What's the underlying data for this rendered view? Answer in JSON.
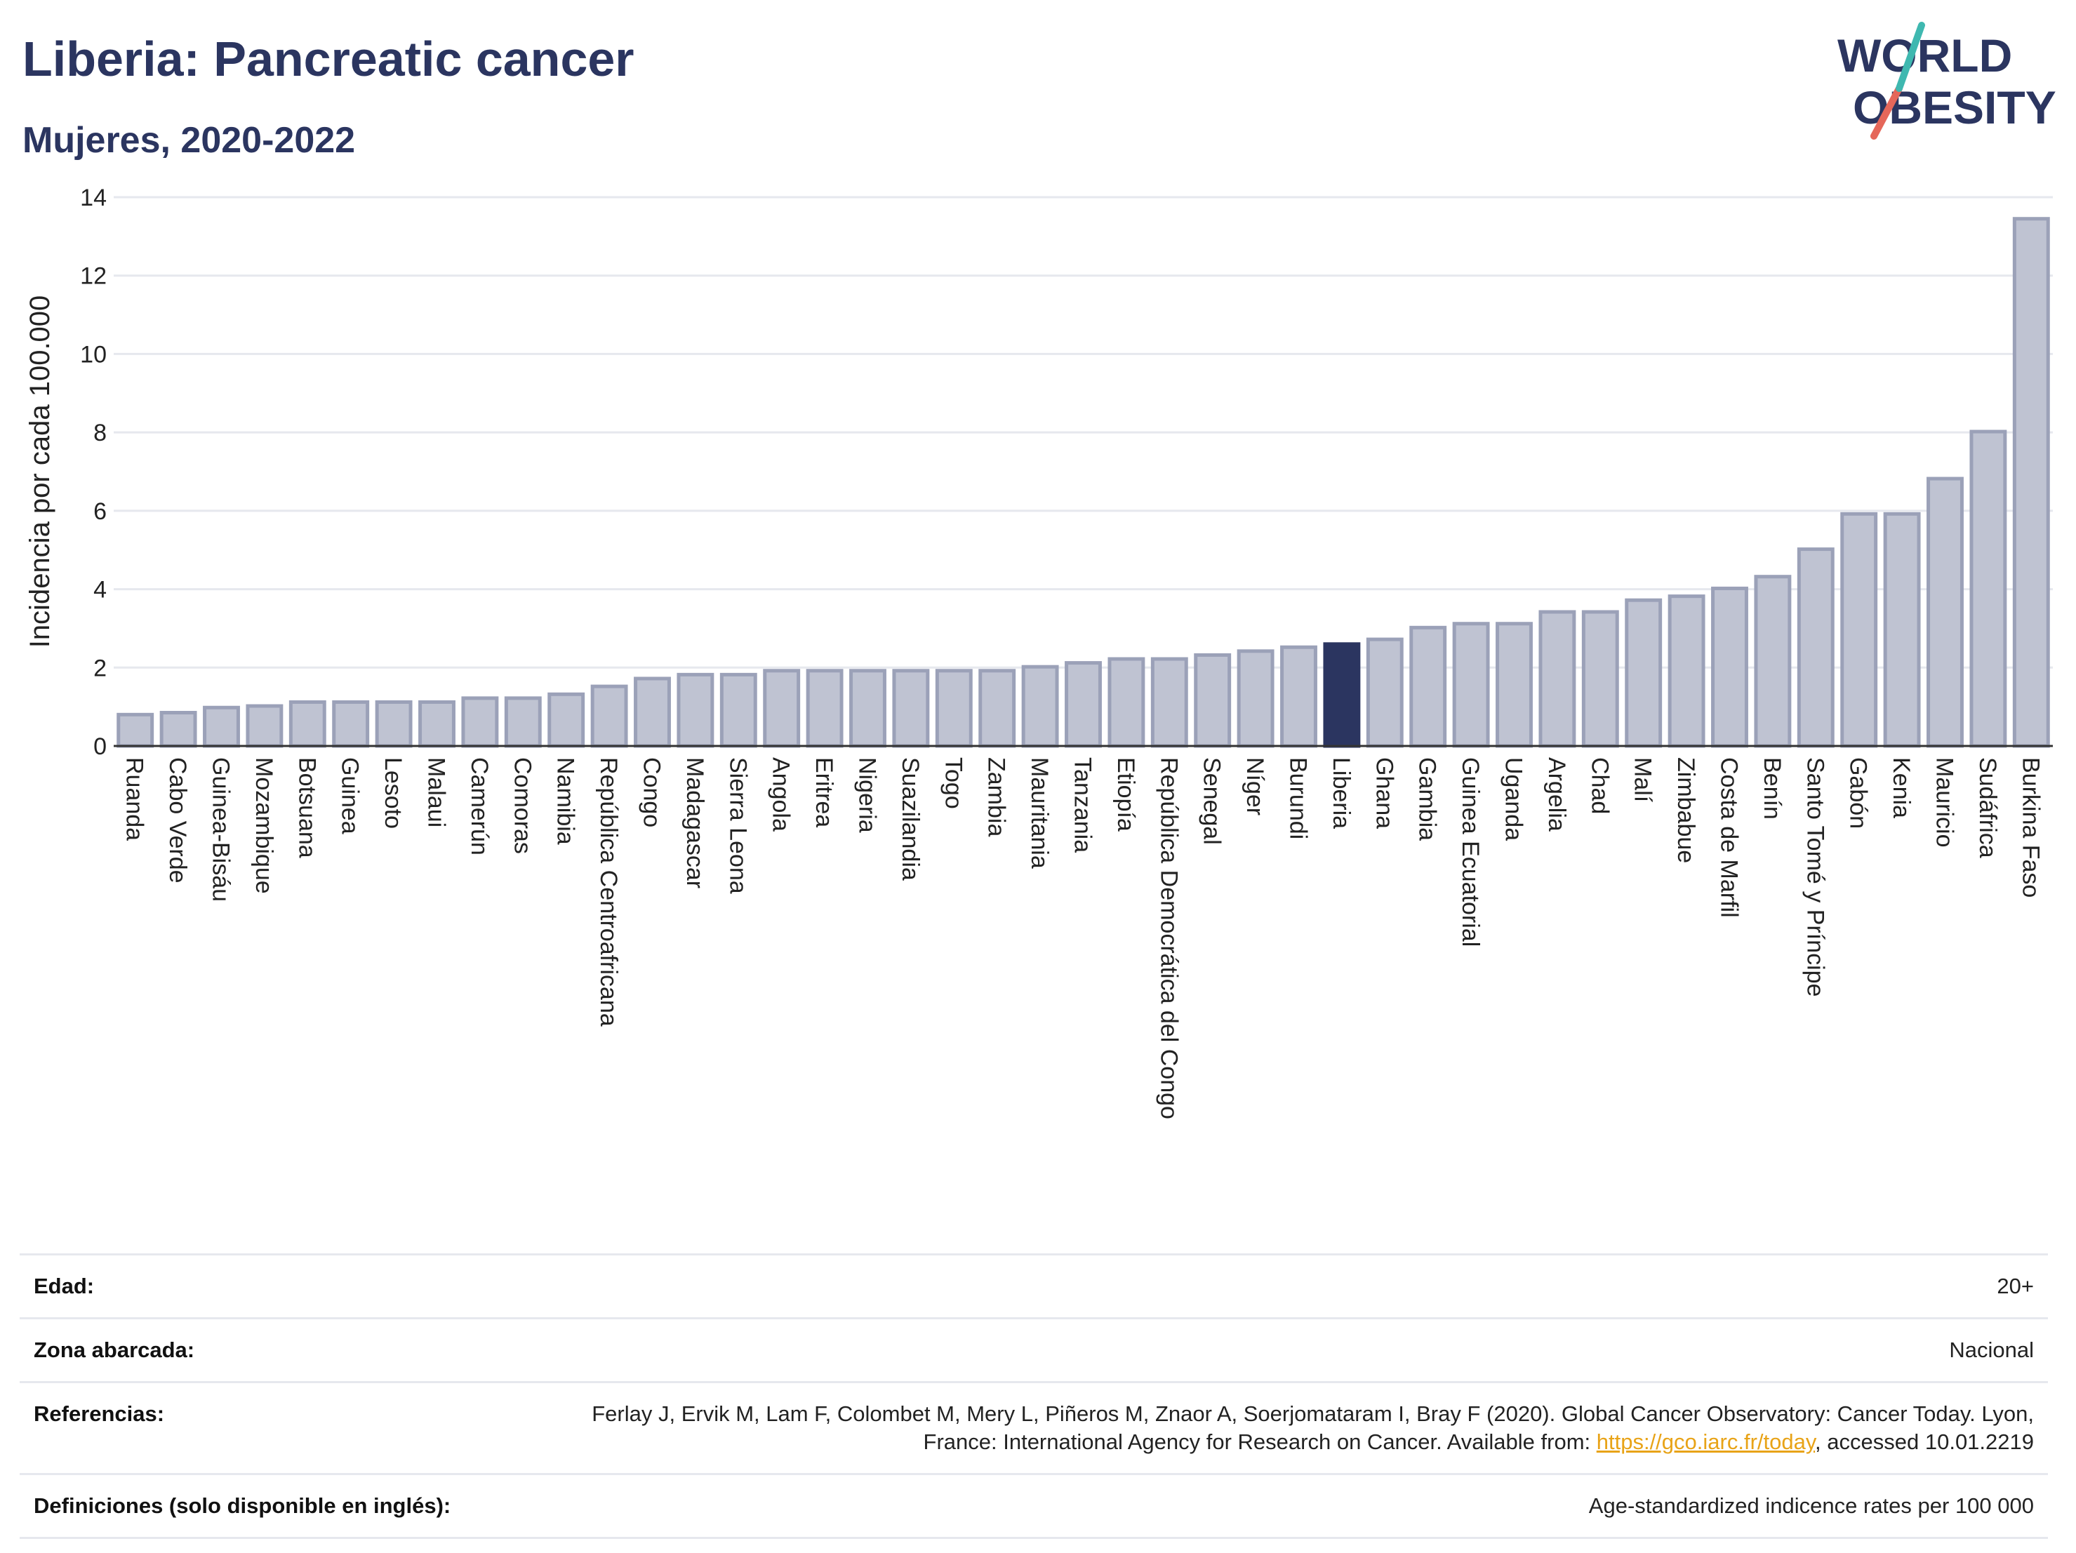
{
  "header": {
    "title": "Liberia: Pancreatic cancer",
    "subtitle": "Mujeres, 2020-2022"
  },
  "logo": {
    "line1": "WORLD",
    "line2": "OBESITY"
  },
  "chart_data": {
    "type": "bar",
    "ylabel": "Incidencia por cada 100.000",
    "ylim": [
      0,
      14
    ],
    "yticks": [
      0,
      2,
      4,
      6,
      8,
      10,
      12,
      14
    ],
    "grid": true,
    "highlight": "Liberia",
    "colors": {
      "bar": "#bfc3d2",
      "bar_edge": "#9ba1b8",
      "highlight": "#2b3560",
      "grid": "#e6e8ee"
    },
    "categories": [
      "Ruanda",
      "Cabo Verde",
      "Guinea-Bisáu",
      "Mozambique",
      "Botsuana",
      "Guinea",
      "Lesoto",
      "Malaui",
      "Camerún",
      "Comoras",
      "Namibia",
      "República Centroafricana",
      "Congo",
      "Madagascar",
      "Sierra Leona",
      "Angola",
      "Eritrea",
      "Nigeria",
      "Suazilandia",
      "Togo",
      "Zambia",
      "Mauritania",
      "Tanzania",
      "Etiopía",
      "República Democrática del Congo",
      "Senegal",
      "Níger",
      "Burundi",
      "Liberia",
      "Ghana",
      "Gambia",
      "Guinea Ecuatorial",
      "Uganda",
      "Argelia",
      "Chad",
      "Malí",
      "Zimbabue",
      "Costa de Marfil",
      "Benín",
      "Santo Tomé y Príncipe",
      "Gabón",
      "Kenia",
      "Mauricio",
      "Sudáfrica",
      "Burkina Faso"
    ],
    "values": [
      0.8,
      0.85,
      0.98,
      1.02,
      1.12,
      1.12,
      1.12,
      1.12,
      1.22,
      1.22,
      1.32,
      1.52,
      1.72,
      1.82,
      1.82,
      1.92,
      1.92,
      1.92,
      1.92,
      1.92,
      1.92,
      2.02,
      2.12,
      2.22,
      2.22,
      2.32,
      2.42,
      2.52,
      2.6,
      2.72,
      3.02,
      3.12,
      3.12,
      3.42,
      3.42,
      3.72,
      3.82,
      4.02,
      4.32,
      5.02,
      5.92,
      5.92,
      6.82,
      8.02,
      13.45
    ]
  },
  "meta": [
    {
      "label": "Edad:",
      "value": "20+"
    },
    {
      "label": "Zona abarcada:",
      "value": "Nacional"
    },
    {
      "label": "Referencias:",
      "value": "Ferlay J, Ervik M, Lam F, Colombet M, Mery L, Piñeros M, Znaor A, Soerjomataram I, Bray F (2020). Global Cancer Observatory: Cancer Today. Lyon, France: International Agency for Research on Cancer. Available from: ",
      "link": "https://gco.iarc.fr/today",
      "suffix": ", accessed 10.01.2219"
    },
    {
      "label": "Definiciones (solo disponible en inglés):",
      "value": "Age-standardized indicence rates per 100 000"
    }
  ]
}
